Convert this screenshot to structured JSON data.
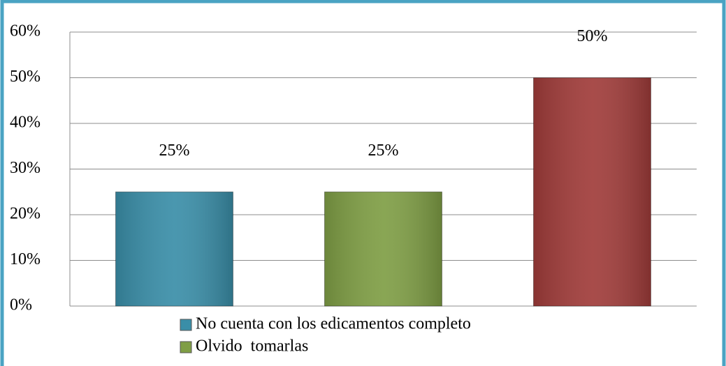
{
  "chart_data": {
    "type": "bar",
    "series": [
      {
        "name": "No cuenta con los edicamentos completo",
        "color": "#3a8ea8",
        "values": [
          25
        ],
        "value_labels": [
          "25%"
        ]
      },
      {
        "name": "Olvido  tomarlas",
        "color": "#7f9e45",
        "values": [
          25
        ],
        "value_labels": [
          "25%"
        ]
      },
      {
        "name": null,
        "color": "#a03c3a",
        "values": [
          50
        ],
        "value_labels": [
          "50%"
        ]
      }
    ],
    "ylim": [
      0,
      60
    ],
    "yticks": [
      {
        "value": 0,
        "label": "0%"
      },
      {
        "value": 10,
        "label": "10%"
      },
      {
        "value": 20,
        "label": "20%"
      },
      {
        "value": 30,
        "label": "30%"
      },
      {
        "value": 40,
        "label": "40%"
      },
      {
        "value": 50,
        "label": "50%"
      },
      {
        "value": 60,
        "label": "60%"
      }
    ],
    "grid": true
  }
}
